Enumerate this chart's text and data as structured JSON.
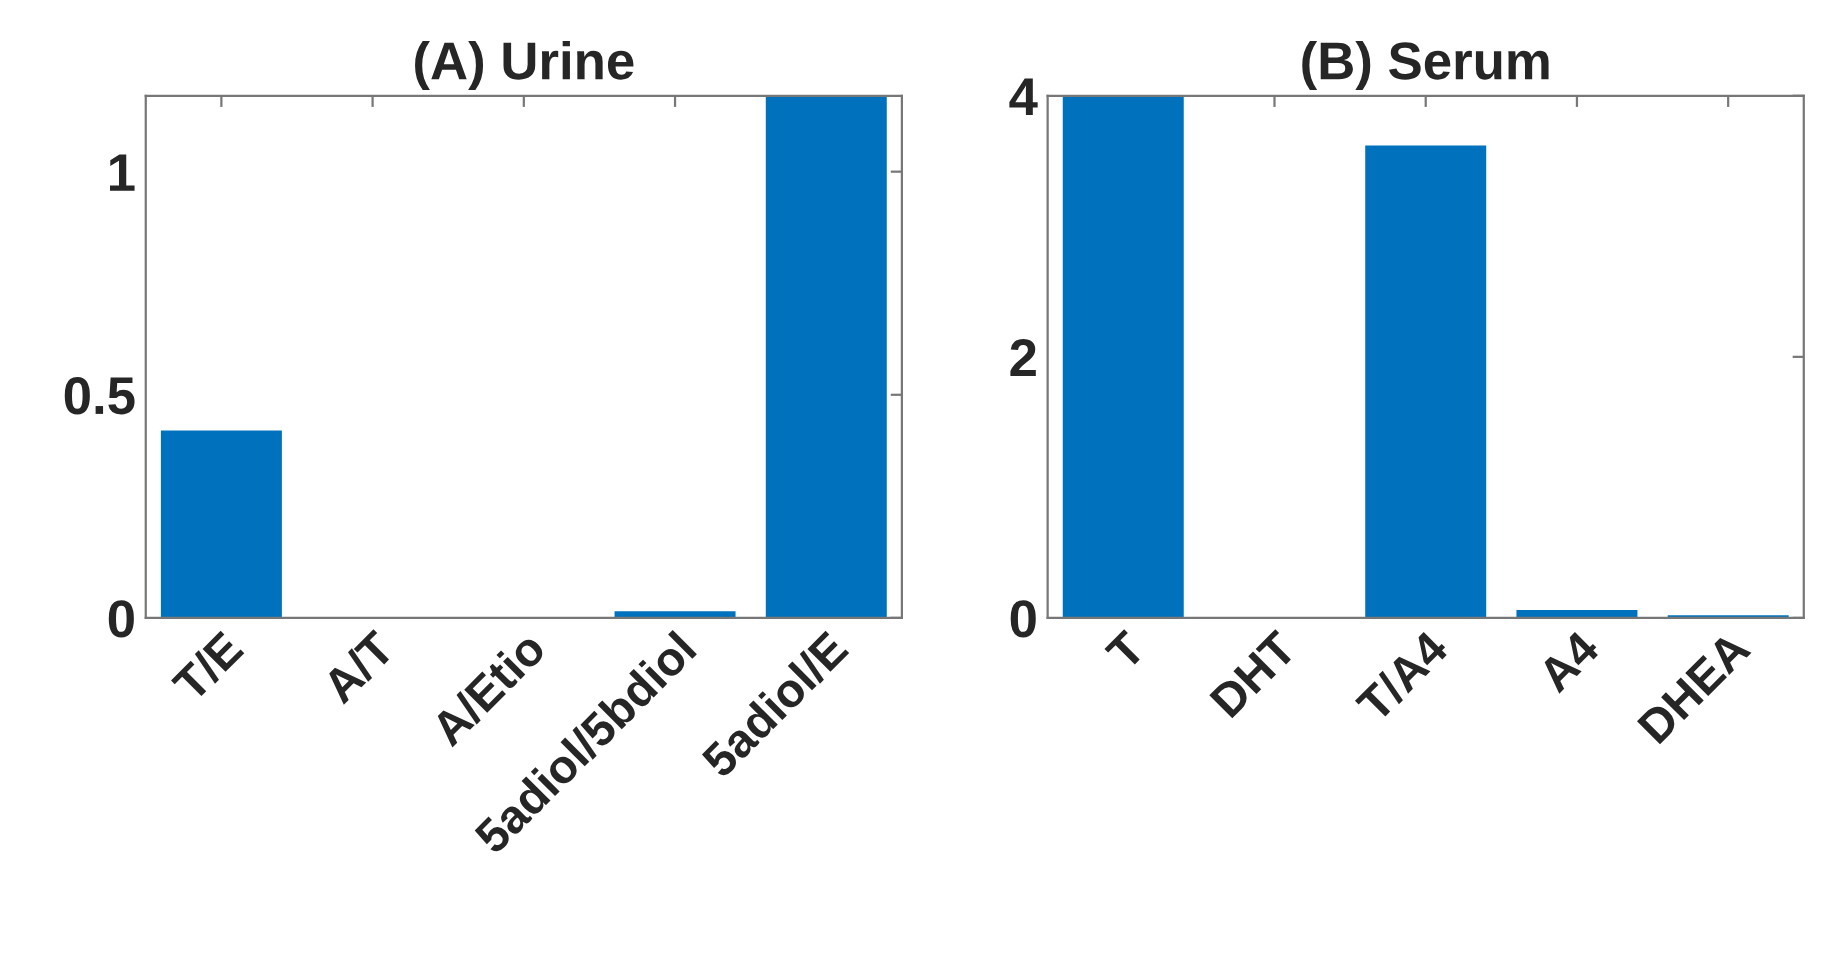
{
  "chart_data": [
    {
      "type": "bar",
      "title": "(A) Urine",
      "categories": [
        "T/E",
        "A/T",
        "A/Etio",
        "5adiol/5bdiol",
        "5adiol/E"
      ],
      "values": [
        0.42,
        0,
        0,
        0.015,
        1.17
      ],
      "color": "#0072bd",
      "ylim": [
        0,
        1.17
      ],
      "yticks": [
        0,
        0.5,
        1
      ],
      "grid": false
    },
    {
      "type": "bar",
      "title": "(B) Serum",
      "categories": [
        "T",
        "DHT",
        "T/A4",
        "A4",
        "DHEA"
      ],
      "values": [
        4,
        0,
        3.62,
        0.06,
        0.02
      ],
      "color": "#0072bd",
      "ylim": [
        0,
        4
      ],
      "yticks": [
        0,
        2,
        4
      ],
      "grid": false
    }
  ]
}
